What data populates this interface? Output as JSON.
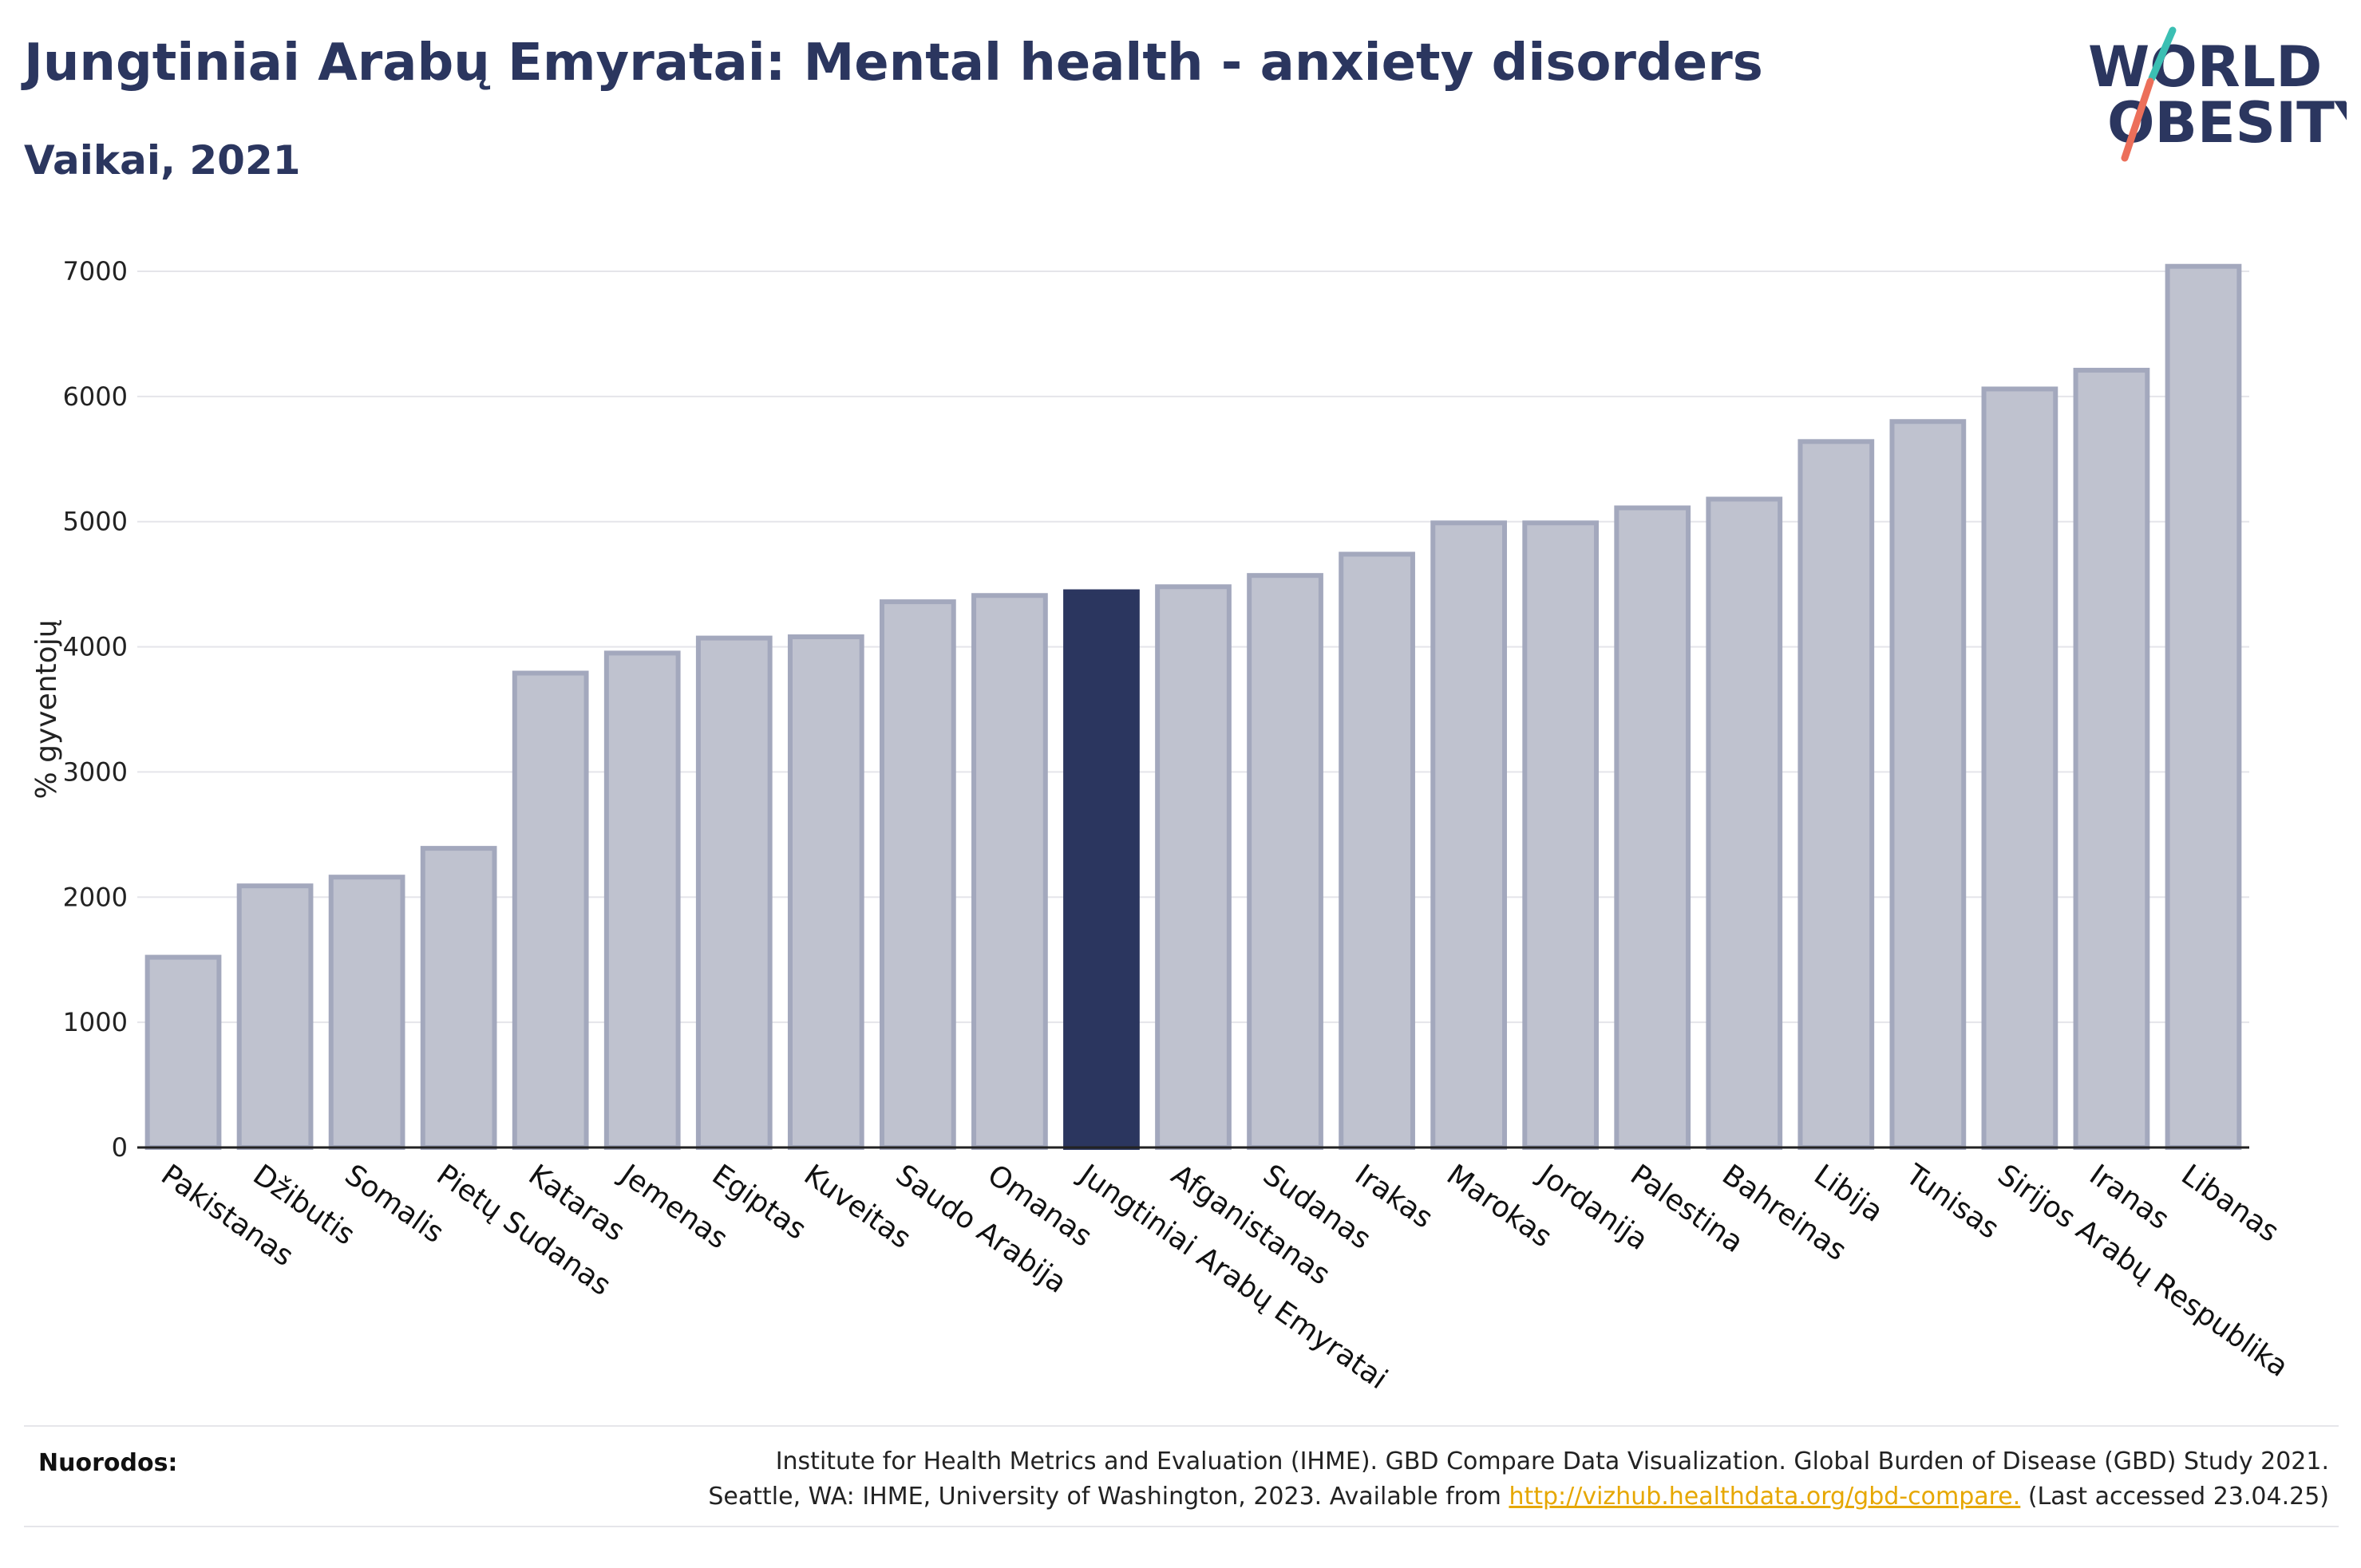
{
  "header": {
    "title": "Jungtiniai Arabų Emyratai: Mental health - anxiety disorders",
    "subtitle": "Vaikai, 2021"
  },
  "logo": {
    "line1": "WORLD",
    "line2": "OBESITY"
  },
  "colors": {
    "highlight": "#2b365f",
    "bar": "#bfc2cf",
    "bar_stroke": "#a3a8bd",
    "grid": "#e5e5ea"
  },
  "chart_data": {
    "type": "bar",
    "ylabel": "% gyventojų",
    "ylim": [
      0,
      7000
    ],
    "yticks": [
      0,
      1000,
      2000,
      3000,
      4000,
      5000,
      6000,
      7000
    ],
    "grid": true,
    "highlight_category": "Jungtiniai Arabų Emyratai",
    "categories": [
      "Pakistanas",
      "Džibutis",
      "Somalis",
      "Pietų Sudanas",
      "Kataras",
      "Jemenas",
      "Egiptas",
      "Kuveitas",
      "Saudo Arabija",
      "Omanas",
      "Jungtiniai Arabų Emyratai",
      "Afganistanas",
      "Sudanas",
      "Irakas",
      "Marokas",
      "Jordanija",
      "Palestina",
      "Bahreinas",
      "Libija",
      "Tunisas",
      "Sirijos Arabų Respublika",
      "Iranas",
      "Libanas"
    ],
    "values": [
      1520,
      2090,
      2160,
      2390,
      3790,
      3950,
      4070,
      4080,
      4360,
      4410,
      4440,
      4480,
      4570,
      4740,
      4990,
      4990,
      5110,
      5180,
      5640,
      5800,
      6060,
      6210,
      7040
    ]
  },
  "footer": {
    "label": "Nuorodos:",
    "line1": "Institute for Health Metrics and Evaluation (IHME). GBD Compare Data Visualization. Global Burden of Disease (GBD) Study 2021.",
    "line2_before": "Seattle, WA: IHME, University of Washington, 2023. Available from ",
    "link": "http://vizhub.healthdata.org/gbd-compare.",
    "line2_after": " (Last accessed 23.04.25)"
  }
}
